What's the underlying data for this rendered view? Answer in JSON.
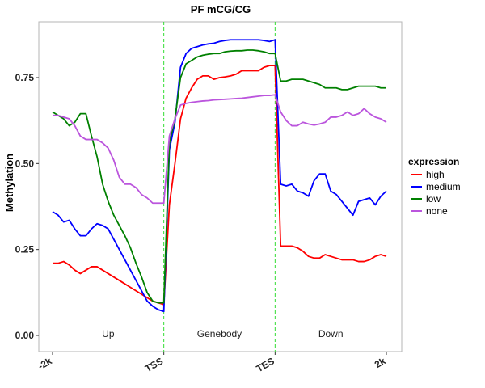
{
  "chart_data": {
    "type": "line",
    "title": "PF mCG/CG",
    "ylabel": "Methylation",
    "xlabel": "",
    "ylim": [
      0,
      0.82
    ],
    "yticks": [
      0.0,
      0.25,
      0.5,
      0.75
    ],
    "ytick_labels": [
      "0.00",
      "0.25",
      "0.50",
      "0.75"
    ],
    "xticks": [
      0,
      20,
      40,
      60
    ],
    "xtick_labels": [
      "-2k",
      "TSS",
      "TES",
      "2k"
    ],
    "xlim": [
      0,
      60
    ],
    "vlines": [
      20,
      40
    ],
    "vline_color": "#33dd33",
    "region_labels": [
      {
        "x": 10,
        "text": "Up"
      },
      {
        "x": 30,
        "text": "Genebody"
      },
      {
        "x": 50,
        "text": "Down"
      }
    ],
    "legend": {
      "title": "expression",
      "position": "right"
    },
    "grid": false,
    "series": [
      {
        "name": "high",
        "color": "#ff0000",
        "values": [
          0.21,
          0.21,
          0.215,
          0.205,
          0.19,
          0.18,
          0.19,
          0.2,
          0.2,
          0.19,
          0.18,
          0.17,
          0.16,
          0.15,
          0.14,
          0.13,
          0.12,
          0.11,
          0.1,
          0.095,
          0.09,
          0.38,
          0.5,
          0.63,
          0.69,
          0.72,
          0.745,
          0.755,
          0.755,
          0.745,
          0.75,
          0.752,
          0.755,
          0.76,
          0.77,
          0.77,
          0.77,
          0.77,
          0.78,
          0.785,
          0.785,
          0.26,
          0.26,
          0.26,
          0.255,
          0.245,
          0.23,
          0.225,
          0.225,
          0.235,
          0.23,
          0.225,
          0.22,
          0.22,
          0.22,
          0.215,
          0.215,
          0.22,
          0.23,
          0.235,
          0.23
        ]
      },
      {
        "name": "medium",
        "color": "#0000ff",
        "values": [
          0.36,
          0.35,
          0.33,
          0.335,
          0.31,
          0.29,
          0.29,
          0.31,
          0.325,
          0.32,
          0.31,
          0.28,
          0.25,
          0.22,
          0.19,
          0.16,
          0.13,
          0.1,
          0.085,
          0.075,
          0.07,
          0.54,
          0.62,
          0.78,
          0.82,
          0.835,
          0.84,
          0.845,
          0.848,
          0.85,
          0.855,
          0.858,
          0.86,
          0.86,
          0.86,
          0.86,
          0.86,
          0.86,
          0.858,
          0.855,
          0.86,
          0.44,
          0.435,
          0.44,
          0.42,
          0.415,
          0.405,
          0.45,
          0.47,
          0.47,
          0.42,
          0.41,
          0.39,
          0.37,
          0.35,
          0.39,
          0.395,
          0.4,
          0.38,
          0.405,
          0.42
        ]
      },
      {
        "name": "low",
        "color": "#008000",
        "values": [
          0.65,
          0.64,
          0.63,
          0.61,
          0.62,
          0.645,
          0.645,
          0.58,
          0.52,
          0.44,
          0.39,
          0.35,
          0.32,
          0.29,
          0.255,
          0.21,
          0.17,
          0.125,
          0.1,
          0.095,
          0.095,
          0.56,
          0.63,
          0.75,
          0.79,
          0.8,
          0.81,
          0.815,
          0.818,
          0.82,
          0.82,
          0.825,
          0.827,
          0.828,
          0.828,
          0.83,
          0.83,
          0.828,
          0.825,
          0.82,
          0.82,
          0.74,
          0.74,
          0.745,
          0.745,
          0.745,
          0.74,
          0.735,
          0.73,
          0.72,
          0.72,
          0.72,
          0.715,
          0.715,
          0.72,
          0.725,
          0.725,
          0.725,
          0.725,
          0.72,
          0.72
        ]
      },
      {
        "name": "none",
        "color": "#bb55dd",
        "values": [
          0.64,
          0.64,
          0.635,
          0.63,
          0.61,
          0.58,
          0.57,
          0.57,
          0.57,
          0.56,
          0.545,
          0.51,
          0.46,
          0.44,
          0.44,
          0.43,
          0.41,
          0.4,
          0.385,
          0.385,
          0.385,
          0.58,
          0.63,
          0.67,
          0.675,
          0.678,
          0.68,
          0.682,
          0.683,
          0.685,
          0.686,
          0.687,
          0.688,
          0.689,
          0.69,
          0.692,
          0.694,
          0.696,
          0.698,
          0.698,
          0.7,
          0.65,
          0.625,
          0.61,
          0.61,
          0.62,
          0.615,
          0.612,
          0.615,
          0.62,
          0.635,
          0.635,
          0.64,
          0.65,
          0.64,
          0.645,
          0.66,
          0.645,
          0.635,
          0.63,
          0.62
        ]
      }
    ]
  }
}
